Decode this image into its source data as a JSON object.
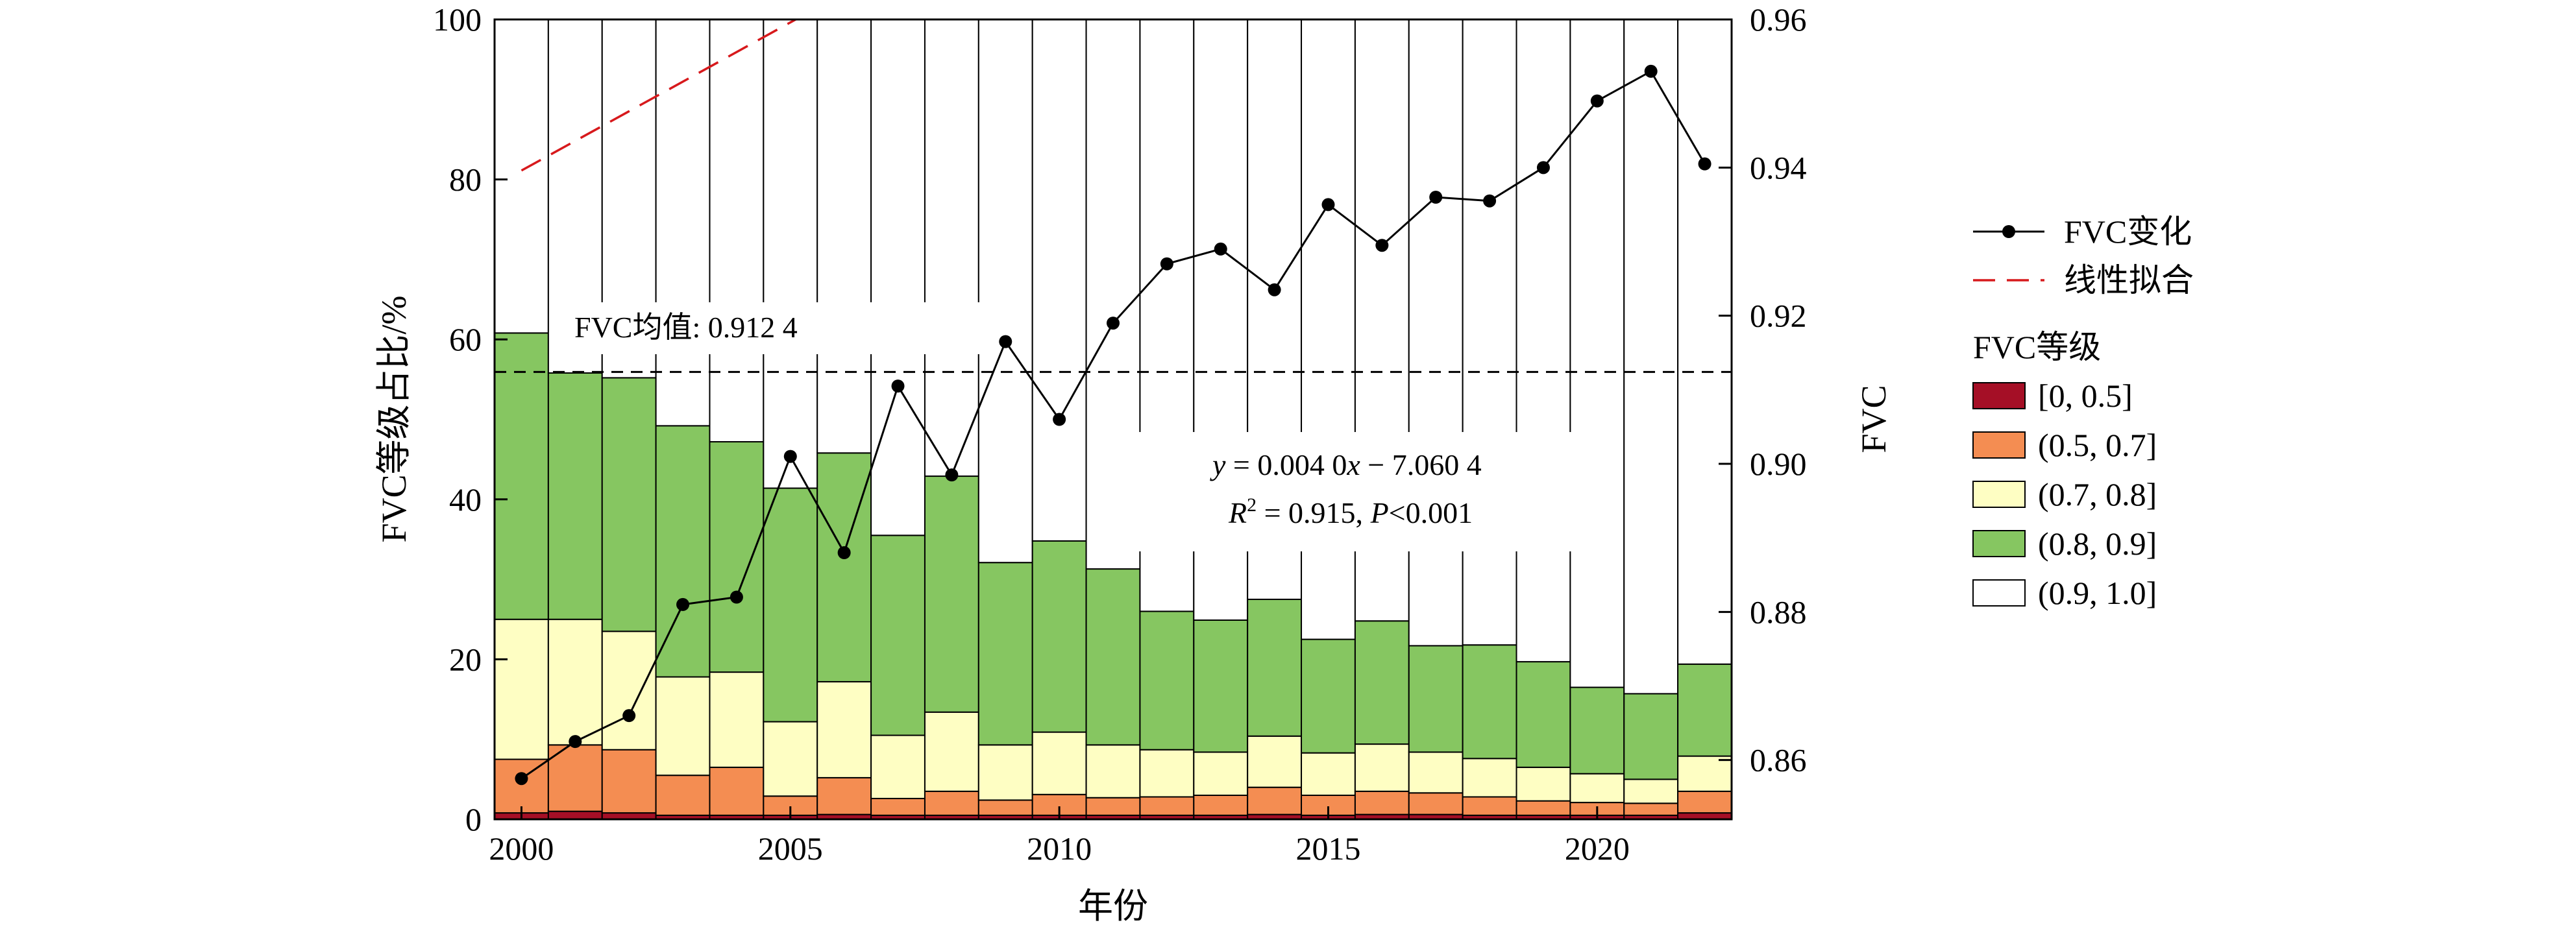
{
  "chart_data": {
    "type": "bar",
    "stacked": true,
    "combined_with": "line",
    "categories": [
      2000,
      2001,
      2002,
      2003,
      2004,
      2005,
      2006,
      2007,
      2008,
      2009,
      2010,
      2011,
      2012,
      2013,
      2014,
      2015,
      2016,
      2017,
      2018,
      2019,
      2020,
      2021,
      2022
    ],
    "xlabel": "年份",
    "ylabel": "FVC等级占比/%",
    "y2label": "FVC",
    "ylim": [
      0,
      100
    ],
    "y2lim": [
      0.852,
      0.96
    ],
    "xlim": [
      1999.5,
      2022.5
    ],
    "x_ticks": [
      2000,
      2005,
      2010,
      2015,
      2020
    ],
    "y_ticks": [
      0,
      20,
      40,
      60,
      80,
      100
    ],
    "y2_ticks": [
      "0.86",
      "0.88",
      "0.90",
      "0.92",
      "0.94",
      "0.96"
    ],
    "legend_title": "FVC等级",
    "legend_position": "right",
    "series": [
      {
        "name": "[0, 0.5]",
        "color": "#a50f26",
        "values": [
          0.8,
          1.0,
          0.8,
          0.5,
          0.5,
          0.5,
          0.6,
          0.5,
          0.5,
          0.5,
          0.5,
          0.5,
          0.5,
          0.5,
          0.6,
          0.5,
          0.6,
          0.6,
          0.5,
          0.5,
          0.5,
          0.5,
          0.8
        ]
      },
      {
        "name": "(0.5, 0.7]",
        "color": "#f48d52",
        "values": [
          6.7,
          8.3,
          7.9,
          5.0,
          6.0,
          2.4,
          4.6,
          2.1,
          3.0,
          1.9,
          2.6,
          2.2,
          2.3,
          2.5,
          3.4,
          2.5,
          2.9,
          2.7,
          2.3,
          1.8,
          1.6,
          1.5,
          2.7
        ]
      },
      {
        "name": "(0.7, 0.8]",
        "color": "#fefec3",
        "values": [
          17.5,
          15.7,
          14.8,
          12.3,
          11.9,
          9.3,
          12.0,
          7.9,
          9.9,
          6.9,
          7.8,
          6.6,
          5.9,
          5.4,
          6.4,
          5.3,
          5.9,
          5.1,
          4.8,
          4.2,
          3.6,
          3.0,
          4.4
        ]
      },
      {
        "name": "(0.8, 0.9]",
        "color": "#86c661",
        "values": [
          35.8,
          30.8,
          31.7,
          31.4,
          28.8,
          29.2,
          28.6,
          25.0,
          29.5,
          22.8,
          23.9,
          22.0,
          17.3,
          16.5,
          17.1,
          14.2,
          15.4,
          13.3,
          14.2,
          13.2,
          10.8,
          10.7,
          11.5
        ]
      },
      {
        "name": "(0.9, 1.0]",
        "color": "#ffffff",
        "values": [
          39.2,
          44.2,
          44.8,
          50.8,
          52.8,
          58.6,
          54.2,
          64.5,
          57.1,
          67.9,
          65.2,
          68.7,
          74.0,
          75.1,
          72.5,
          77.5,
          75.2,
          78.3,
          78.2,
          80.3,
          83.5,
          84.3,
          80.6
        ]
      }
    ],
    "line": {
      "name": "FVC变化",
      "values": [
        0.8575,
        0.8625,
        0.866,
        0.881,
        0.882,
        0.901,
        0.888,
        0.9105,
        0.8985,
        0.9165,
        0.906,
        0.919,
        0.927,
        0.929,
        0.9235,
        0.935,
        0.9295,
        0.936,
        0.9355,
        0.94,
        0.949,
        0.953,
        0.9405
      ]
    },
    "fit": {
      "name": "线性拟合",
      "slope": 0.004,
      "intercept": -7.0604,
      "x_range": [
        2000,
        2022
      ]
    },
    "mean_line": {
      "label": "FVC均值: 0.912 4",
      "value": 0.9124
    },
    "equation": {
      "y": "y",
      "eq": " = 0.004 0",
      "x": "x",
      "rest": " − 7.060 4"
    },
    "r2": {
      "r": "R",
      "sup": "2",
      "mid": " = 0.915, ",
      "p": "P",
      "tail": "<0.001"
    }
  }
}
